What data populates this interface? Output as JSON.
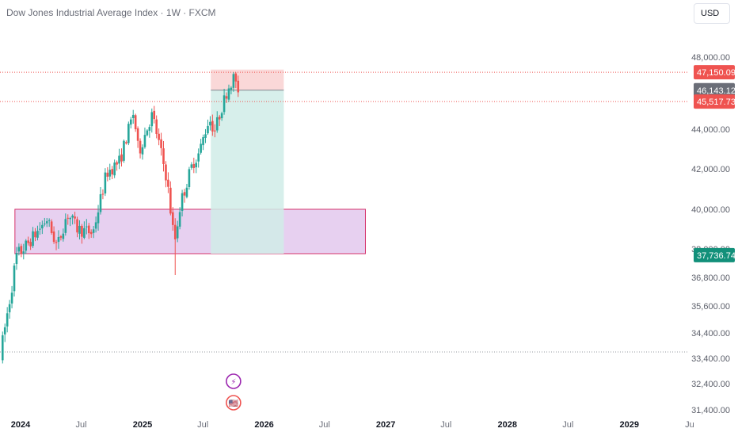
{
  "header": {
    "title": "Dow Jones Industrial Average Index · 1W · FXCM",
    "currency": "USD"
  },
  "colors": {
    "up": "#26a69a",
    "down": "#ef5350",
    "zone_fill": "#e1c4ec",
    "zone_border": "#d6336c",
    "stop_fill": "#fad4d4",
    "target_fill": "#d0ece7",
    "label_red": "#ef5350",
    "label_gray": "#6b6e78",
    "label_green": "#12907a",
    "event_purple": "#9c27b0"
  },
  "chart_data": {
    "type": "candlestick",
    "title": "Dow Jones Industrial Average Index · 1W · FXCM",
    "y_ticks": [
      {
        "value": 48000,
        "label": "48,000.00"
      },
      {
        "value": 44000,
        "label": "44,000.00"
      },
      {
        "value": 42000,
        "label": "42,000.00"
      },
      {
        "value": 40000,
        "label": "40,000.00"
      },
      {
        "value": 38000,
        "label": "38,000.00"
      },
      {
        "value": 36800,
        "label": "36,800.00"
      },
      {
        "value": 35600,
        "label": "35,600.00"
      },
      {
        "value": 34400,
        "label": "34,400.00"
      },
      {
        "value": 33400,
        "label": "33,400.00"
      },
      {
        "value": 32400,
        "label": "32,400.00"
      },
      {
        "value": 31400,
        "label": "31,400.00"
      }
    ],
    "x_ticks": [
      {
        "date": "2024-01",
        "label": "2024",
        "bold": true
      },
      {
        "date": "2024-07",
        "label": "Jul",
        "bold": false
      },
      {
        "date": "2025-01",
        "label": "2025",
        "bold": true
      },
      {
        "date": "2025-07",
        "label": "Jul",
        "bold": false
      },
      {
        "date": "2026-01",
        "label": "2026",
        "bold": true
      },
      {
        "date": "2026-07",
        "label": "Jul",
        "bold": false
      },
      {
        "date": "2027-01",
        "label": "2027",
        "bold": true
      },
      {
        "date": "2027-07",
        "label": "Jul",
        "bold": false
      },
      {
        "date": "2028-01",
        "label": "2028",
        "bold": true
      },
      {
        "date": "2028-07",
        "label": "Jul",
        "bold": false
      },
      {
        "date": "2029-01",
        "label": "2029",
        "bold": true
      },
      {
        "date": "2029-07",
        "label": "Ju",
        "bold": false
      }
    ],
    "price_labels": [
      {
        "value": 47150.09,
        "text": "47,150.09",
        "color": "label_red"
      },
      {
        "value": 46143.12,
        "text": "46,143.12",
        "color": "label_gray"
      },
      {
        "value": 45517.73,
        "text": "45,517.73",
        "color": "label_red"
      },
      {
        "value": 37736.74,
        "text": "37,736.74",
        "color": "label_green"
      }
    ],
    "horizontal_lines": [
      47150.09,
      45517.73,
      33650
    ],
    "zone": {
      "from": "2023-12-15",
      "to": "2026-11-01",
      "top": 40000,
      "bottom": 37800
    },
    "position": {
      "from": "2025-07-25",
      "to": "2026-03-01",
      "entry": 46143.12,
      "stop": 47300,
      "target": 37800
    },
    "events": [
      {
        "date": "2025-10-01",
        "kind": "dividend",
        "symbol": "⚡"
      },
      {
        "date": "2025-10-01",
        "kind": "us-economic-event",
        "symbol": "🇺🇸"
      }
    ],
    "anchors": [
      [
        "2023-11-01",
        33400
      ],
      [
        "2023-12-20",
        37700
      ],
      [
        "2024-01-20",
        38200
      ],
      [
        "2024-03-20",
        39500
      ],
      [
        "2024-04-20",
        38100
      ],
      [
        "2024-05-20",
        39800
      ],
      [
        "2024-06-20",
        39000
      ],
      [
        "2024-08-05",
        38800
      ],
      [
        "2024-09-15",
        41800
      ],
      [
        "2024-10-25",
        42400
      ],
      [
        "2024-12-05",
        44900
      ],
      [
        "2024-12-20",
        42800
      ],
      [
        "2025-01-30",
        44800
      ],
      [
        "2025-03-15",
        41500
      ],
      [
        "2025-04-07",
        38300
      ],
      [
        "2025-04-25",
        40300
      ],
      [
        "2025-06-01",
        42300
      ],
      [
        "2025-06-20",
        42800
      ],
      [
        "2025-07-20",
        44600
      ],
      [
        "2025-08-05",
        43900
      ],
      [
        "2025-09-15",
        46300
      ],
      [
        "2025-10-06",
        47000
      ],
      [
        "2025-10-15",
        45700
      ]
    ]
  }
}
